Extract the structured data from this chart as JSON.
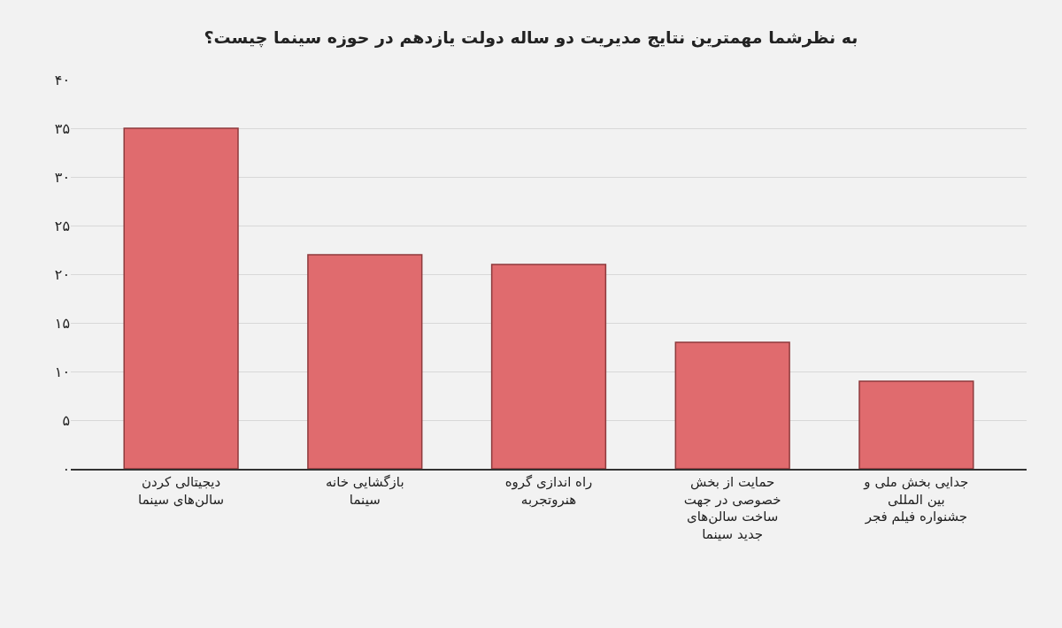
{
  "chart_data": {
    "type": "bar",
    "title": "به نظرشما مهمترین نتایج مدیریت دو ساله دولت یازدهم در حوزه سینما چیست؟",
    "categories": [
      "دیجیتالی کردن سالن‌های سینما",
      "بازگشایی خانه سینما",
      "راه اندازی گروه هنروتجربه",
      "حمایت از بخش خصوصی در جهت ساخت سالن‌های جدید سینما",
      "جدایی بخش ملی و بین المللی جشنواره فیلم فجر"
    ],
    "values": [
      35,
      22,
      21,
      13,
      9
    ],
    "color": "#e06b6e",
    "ylim": [
      0,
      40
    ],
    "yticks": [
      {
        "value": 0,
        "label": "۰"
      },
      {
        "value": 5,
        "label": "۵"
      },
      {
        "value": 10,
        "label": "۱۰"
      },
      {
        "value": 15,
        "label": "۱۵"
      },
      {
        "value": 20,
        "label": "۲۰"
      },
      {
        "value": 25,
        "label": "۲۵"
      },
      {
        "value": 30,
        "label": "۳۰"
      },
      {
        "value": 35,
        "label": "۳۵"
      },
      {
        "value": 40,
        "label": "۴۰"
      }
    ],
    "grid": "y"
  }
}
